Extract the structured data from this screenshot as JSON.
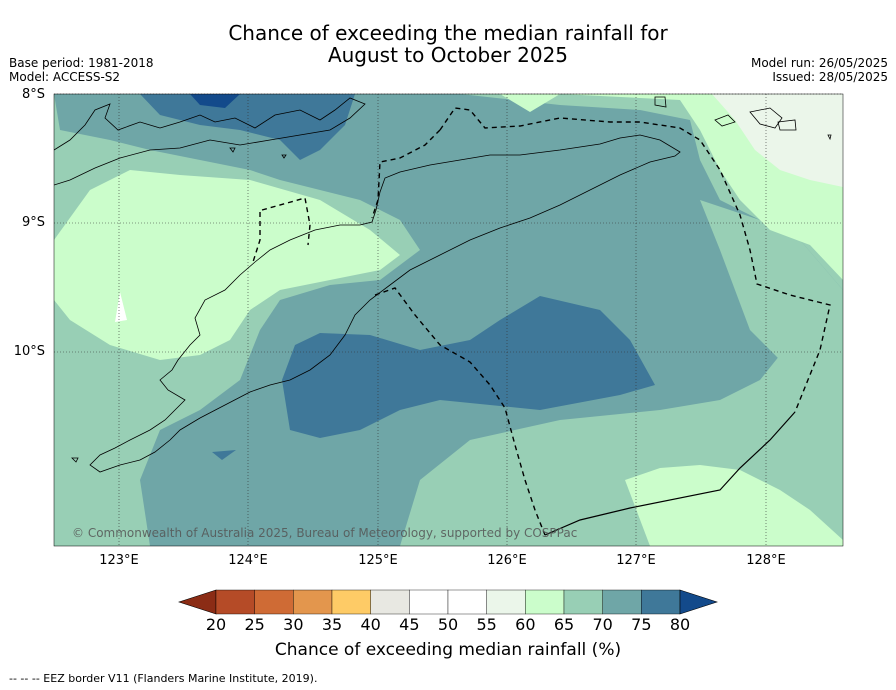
{
  "title_line1": "Chance of exceeding the median rainfall for",
  "title_line2": "August to October 2025",
  "base_period": "Base period: 1981-2018",
  "model": "Model: ACCESS-S2",
  "model_run": "Model run: 26/05/2025",
  "issued": "Issued: 28/05/2025",
  "copyright": "© Commonwealth of Australia 2025, Bureau of Meteorology, supported by COSPPac",
  "lat_labels": [
    "8°S",
    "9°S",
    "10°S"
  ],
  "lon_labels": [
    "123°E",
    "124°E",
    "125°E",
    "126°E",
    "127°E",
    "128°E"
  ],
  "colorbar": {
    "title": "Chance of exceeding median rainfall (%)",
    "ticks": [
      "20",
      "25",
      "30",
      "35",
      "40",
      "45",
      "50",
      "55",
      "60",
      "65",
      "70",
      "75",
      "80"
    ],
    "colors": [
      "#8b2c15",
      "#b54b27",
      "#cf6b35",
      "#e3964d",
      "#fecb66",
      "#e8e8e2",
      "#ffffff",
      "#ffffff",
      "#ebf6ea",
      "#cbfdcb",
      "#98cfb5",
      "#6fa6a7",
      "#3f7899",
      "#134a8b"
    ]
  },
  "contour_colors": {
    "c55_60": "#ebf6ea",
    "c60_65": "#cbfdcb",
    "c65_70": "#98cfb5",
    "c70_75": "#6fa6a7",
    "c75_80": "#3f7899",
    "c80": "#134a8b",
    "c45_50": "#ffffff"
  },
  "footer": "--  --  -- EEZ border V11 (Flanders Marine Institute, 2019)."
}
